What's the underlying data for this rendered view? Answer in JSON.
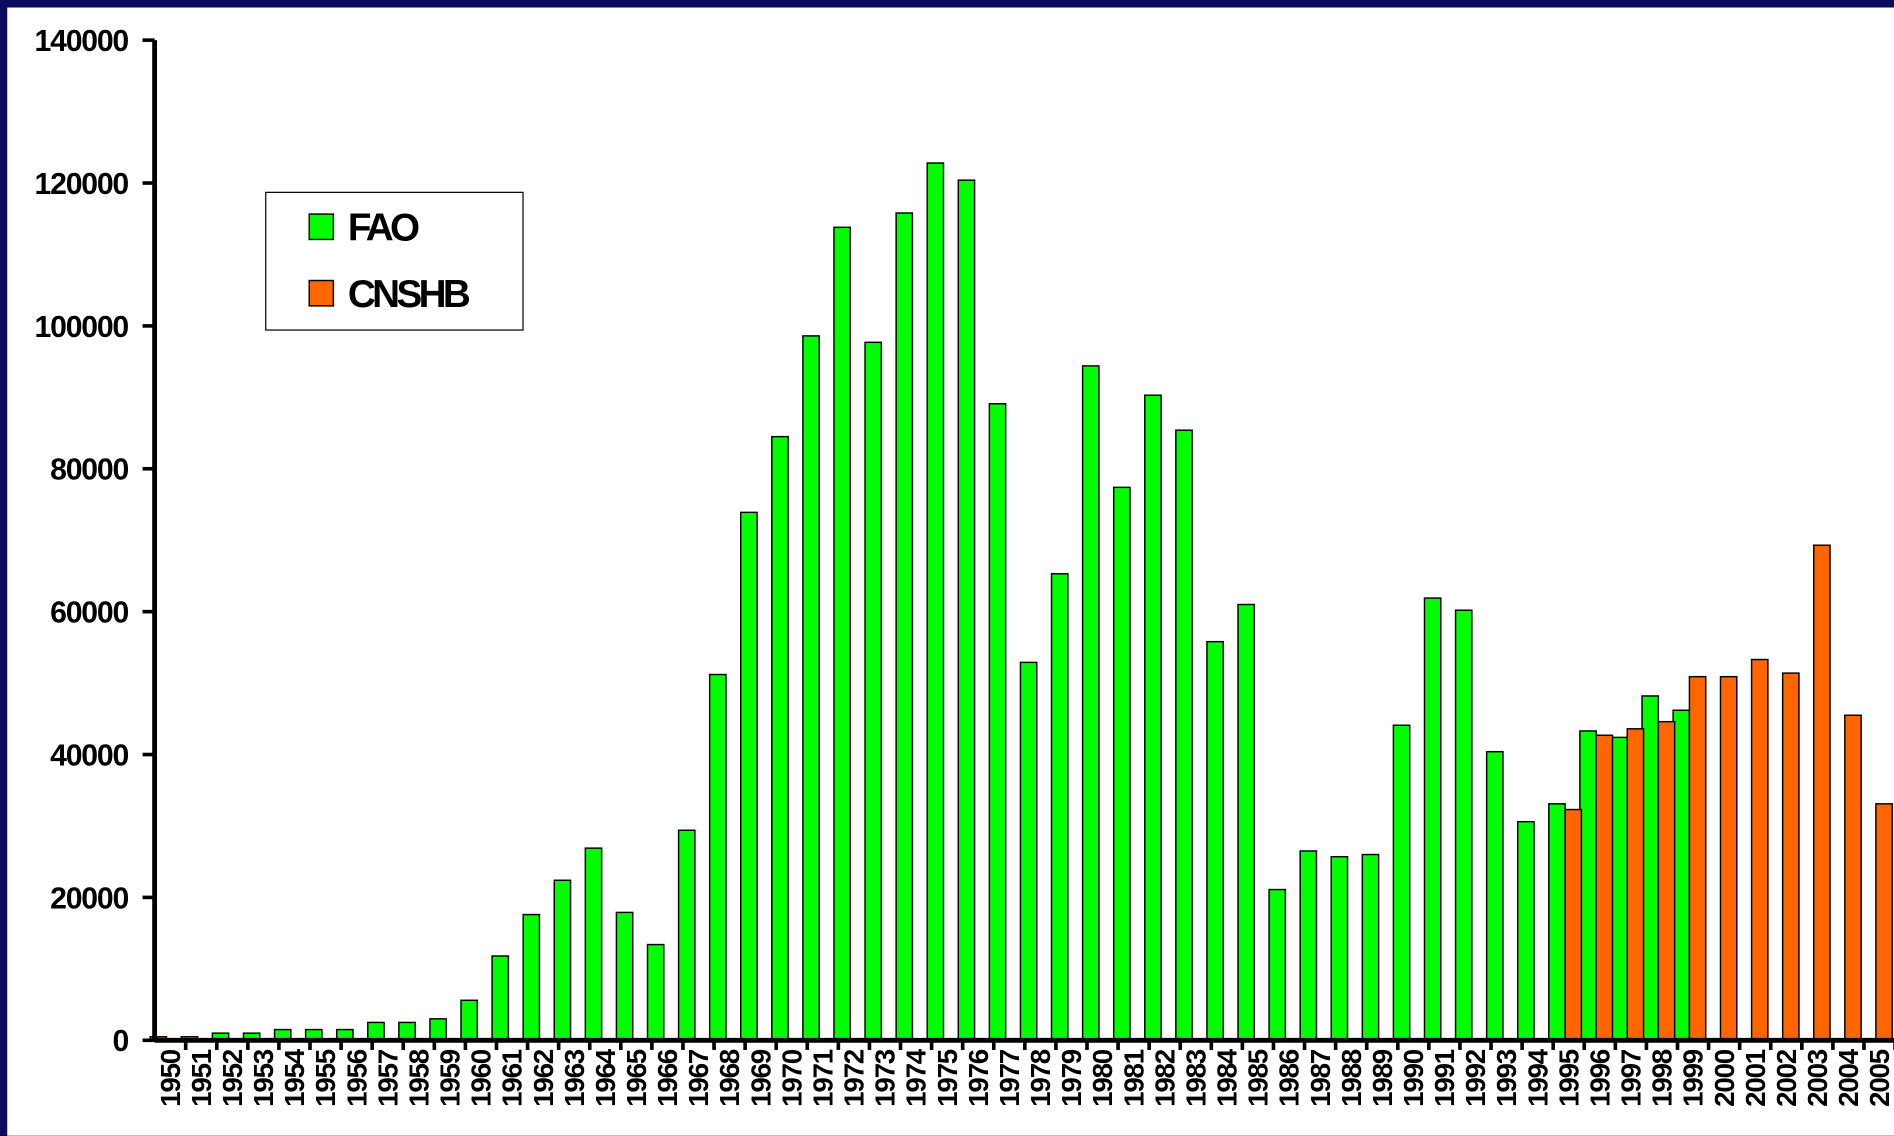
{
  "chart_data": {
    "type": "bar",
    "categories": [
      "1950",
      "1951",
      "1952",
      "1953",
      "1954",
      "1955",
      "1956",
      "1957",
      "1958",
      "1959",
      "1960",
      "1961",
      "1962",
      "1963",
      "1964",
      "1965",
      "1966",
      "1967",
      "1968",
      "1969",
      "1970",
      "1971",
      "1972",
      "1973",
      "1974",
      "1975",
      "1976",
      "1977",
      "1978",
      "1979",
      "1980",
      "1981",
      "1982",
      "1983",
      "1984",
      "1985",
      "1986",
      "1987",
      "1988",
      "1989",
      "1990",
      "1991",
      "1992",
      "1993",
      "1994",
      "1995",
      "1996",
      "1997",
      "1998",
      "1999",
      "2000",
      "2001",
      "2002",
      "2003",
      "2004",
      "2005"
    ],
    "series": [
      {
        "name": "FAO",
        "color": "#00ff00",
        "values": [
          500,
          500,
          1000,
          1000,
          1500,
          1500,
          1500,
          2500,
          2500,
          3000,
          5600,
          11800,
          17600,
          22400,
          26900,
          17900,
          13400,
          29400,
          51200,
          73900,
          84500,
          98600,
          113800,
          97700,
          115800,
          122800,
          120400,
          89100,
          52900,
          65300,
          94400,
          77400,
          90300,
          85400,
          55800,
          61000,
          21100,
          26500,
          25700,
          26000,
          44100,
          61900,
          60200,
          40400,
          30600,
          33100,
          43300,
          42400,
          48200,
          46200,
          null,
          null,
          null,
          null,
          null,
          null
        ]
      },
      {
        "name": "CNSHB",
        "color": "#ff6600",
        "values": [
          null,
          null,
          null,
          null,
          null,
          null,
          null,
          null,
          null,
          null,
          null,
          null,
          null,
          null,
          null,
          null,
          null,
          null,
          null,
          null,
          null,
          null,
          null,
          null,
          null,
          null,
          null,
          null,
          null,
          null,
          null,
          null,
          null,
          null,
          null,
          null,
          null,
          null,
          null,
          null,
          null,
          null,
          null,
          null,
          null,
          32300,
          42700,
          43600,
          44600,
          50900,
          50900,
          53300,
          51400,
          69300,
          45500,
          33100
        ]
      }
    ],
    "ylim": [
      0,
      140000
    ],
    "yticks": [
      0,
      20000,
      40000,
      60000,
      80000,
      100000,
      120000,
      140000
    ],
    "legend": "upper left"
  }
}
